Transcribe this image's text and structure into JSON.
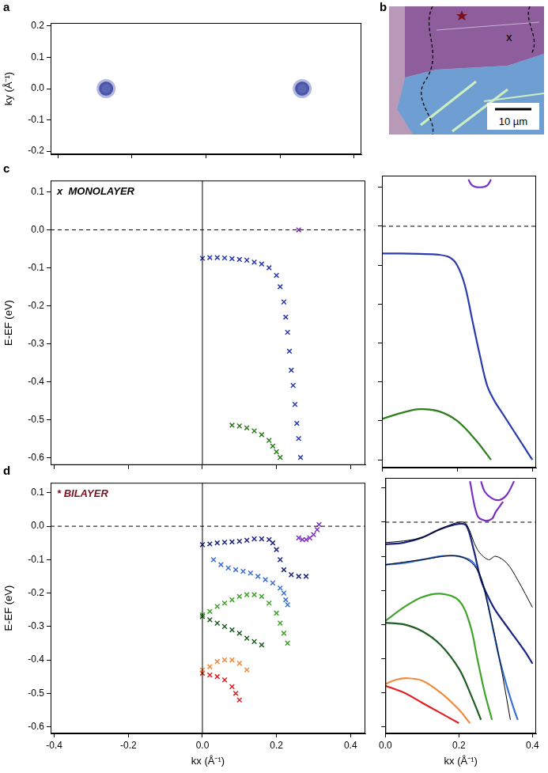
{
  "chart_data": [
    {
      "panel": "a",
      "type": "scatter",
      "xlim": [
        -0.42,
        0.42
      ],
      "ylim": [
        -0.21,
        0.21
      ],
      "xticks": [
        -0.4,
        -0.2,
        {
          "value": 0,
          "label": "0.0"
        },
        0.2,
        0.4
      ],
      "yticks": [
        -0.2,
        -0.1,
        {
          "value": 0,
          "label": "0.0"
        },
        0.1,
        0.2
      ],
      "y_label": "ky (Å⁻¹)",
      "tick_labels": "y",
      "grid": false,
      "series": [
        {
          "type": "scatter",
          "marker": "blob",
          "color": "#25339a",
          "x": [
            -0.27,
            0.26
          ],
          "values": [
            0,
            0
          ]
        }
      ]
    },
    {
      "panel": "c",
      "type": "scatter",
      "xlim": [
        -0.41,
        0.44
      ],
      "ylim": [
        -0.62,
        0.13
      ],
      "xticks": [
        -0.4,
        -0.2,
        {
          "value": 0,
          "label": "0.0"
        },
        0.2,
        0.4
      ],
      "yticks": [
        -0.6,
        -0.5,
        -0.4,
        -0.3,
        -0.2,
        -0.1,
        {
          "value": 0,
          "label": "0.0"
        },
        0.1
      ],
      "y_label": "E-EF (eV)",
      "tick_labels": "y",
      "grid": false,
      "hlines": [
        0
      ],
      "vlines": [
        0
      ],
      "annotation": {
        "text": "x  MONOLAYER",
        "color": "#000000"
      },
      "series": [
        {
          "type": "scatter",
          "marker": "cross",
          "color": "#2a3bb0",
          "x": [
            0.0,
            0.02,
            0.04,
            0.06,
            0.08,
            0.1,
            0.12,
            0.14,
            0.16,
            0.18,
            0.2,
            0.21,
            0.22,
            0.225,
            0.23,
            0.235,
            0.24,
            0.245,
            0.25,
            0.255,
            0.26,
            0.265
          ],
          "values": [
            -0.075,
            -0.073,
            -0.073,
            -0.074,
            -0.076,
            -0.078,
            -0.08,
            -0.085,
            -0.09,
            -0.1,
            -0.12,
            -0.15,
            -0.19,
            -0.23,
            -0.27,
            -0.32,
            -0.37,
            -0.41,
            -0.46,
            -0.51,
            -0.55,
            -0.6
          ]
        },
        {
          "type": "scatter",
          "marker": "cross",
          "color": "#2e7d1e",
          "x": [
            0.08,
            0.1,
            0.12,
            0.14,
            0.16,
            0.18,
            0.19,
            0.2,
            0.21
          ],
          "values": [
            -0.515,
            -0.517,
            -0.522,
            -0.53,
            -0.54,
            -0.555,
            -0.57,
            -0.585,
            -0.6
          ]
        },
        {
          "type": "scatter",
          "marker": "cross",
          "color": "#7b2fbf",
          "x": [
            0.26
          ],
          "values": [
            0.0
          ]
        }
      ]
    },
    {
      "type": "line",
      "xlim": [
        0,
        0.41
      ],
      "ylim": [
        -0.62,
        0.13
      ],
      "xticks": [
        {
          "value": 0,
          "label": "0.0"
        },
        0.2,
        0.4
      ],
      "yticks": [
        -0.6,
        -0.5,
        -0.4,
        -0.3,
        -0.2,
        -0.1,
        {
          "value": 0,
          "label": "0.0"
        },
        0.1
      ],
      "tick_labels": false,
      "grid": false,
      "hlines": [
        0
      ],
      "series": [
        {
          "type": "line",
          "line_style": "solid",
          "color": "#2a3bb0",
          "x": [
            0,
            0.05,
            0.1,
            0.15,
            0.18,
            0.2,
            0.22,
            0.24,
            0.26,
            0.28,
            0.3,
            0.32,
            0.34,
            0.36,
            0.38,
            0.4
          ],
          "values": [
            -0.07,
            -0.07,
            -0.071,
            -0.073,
            -0.08,
            -0.1,
            -0.15,
            -0.24,
            -0.33,
            -0.41,
            -0.45,
            -0.48,
            -0.51,
            -0.54,
            -0.57,
            -0.6
          ]
        },
        {
          "type": "line",
          "line_style": "solid",
          "color": "#2e7d1e",
          "x": [
            0,
            0.05,
            0.1,
            0.15,
            0.2,
            0.25,
            0.29
          ],
          "values": [
            -0.495,
            -0.48,
            -0.47,
            -0.475,
            -0.5,
            -0.55,
            -0.6
          ]
        },
        {
          "type": "line",
          "line_style": "solid",
          "color": "#7b2fbf",
          "x": [
            0.23,
            0.24,
            0.26,
            0.28,
            0.29
          ],
          "values": [
            0.12,
            0.105,
            0.1,
            0.105,
            0.12
          ]
        }
      ]
    },
    {
      "panel": "d",
      "type": "scatter",
      "xlim": [
        -0.41,
        0.44
      ],
      "ylim": [
        -0.62,
        0.13
      ],
      "xticks": [
        -0.4,
        -0.2,
        {
          "value": 0,
          "label": "0.0"
        },
        0.2,
        0.4
      ],
      "yticks": [
        -0.6,
        -0.5,
        -0.4,
        -0.3,
        -0.2,
        -0.1,
        {
          "value": 0,
          "label": "0.0"
        },
        0.1
      ],
      "x_label": "kx (Å⁻¹)",
      "y_label": "E-EF (eV)",
      "tick_labels": true,
      "grid": false,
      "hlines": [
        0
      ],
      "vlines": [
        0
      ],
      "annotation": {
        "text": "* BILAYER",
        "color": "#7a1020"
      },
      "series": [
        {
          "type": "scatter",
          "marker": "cross",
          "color": "#1a237e",
          "x": [
            0.0,
            0.02,
            0.04,
            0.06,
            0.08,
            0.1,
            0.12,
            0.14,
            0.16,
            0.18,
            0.19,
            0.2,
            0.21,
            0.22,
            0.24,
            0.26,
            0.28
          ],
          "values": [
            -0.055,
            -0.053,
            -0.05,
            -0.048,
            -0.047,
            -0.045,
            -0.042,
            -0.038,
            -0.038,
            -0.04,
            -0.05,
            -0.07,
            -0.1,
            -0.13,
            -0.145,
            -0.15,
            -0.15
          ]
        },
        {
          "type": "scatter",
          "marker": "cross",
          "color": "#3a6fd8",
          "x": [
            0.03,
            0.05,
            0.07,
            0.09,
            0.11,
            0.13,
            0.15,
            0.17,
            0.19,
            0.21,
            0.22,
            0.225,
            0.23
          ],
          "values": [
            -0.1,
            -0.115,
            -0.125,
            -0.13,
            -0.135,
            -0.14,
            -0.15,
            -0.16,
            -0.17,
            -0.185,
            -0.2,
            -0.22,
            -0.235
          ]
        },
        {
          "type": "scatter",
          "marker": "cross",
          "color": "#7b2fbf",
          "x": [
            0.26,
            0.27,
            0.28,
            0.29,
            0.3,
            0.31,
            0.315
          ],
          "values": [
            -0.035,
            -0.04,
            -0.04,
            -0.035,
            -0.025,
            -0.01,
            0.005
          ]
        },
        {
          "type": "scatter",
          "marker": "cross",
          "color": "#3fa32a",
          "x": [
            0.0,
            0.02,
            0.04,
            0.06,
            0.08,
            0.1,
            0.12,
            0.14,
            0.16,
            0.18,
            0.2,
            0.21,
            0.22,
            0.23
          ],
          "values": [
            -0.265,
            -0.255,
            -0.24,
            -0.23,
            -0.22,
            -0.21,
            -0.205,
            -0.205,
            -0.21,
            -0.23,
            -0.26,
            -0.29,
            -0.32,
            -0.35
          ]
        },
        {
          "type": "scatter",
          "marker": "cross",
          "color": "#1e5e20",
          "x": [
            0.0,
            0.02,
            0.04,
            0.06,
            0.08,
            0.1,
            0.12,
            0.14,
            0.16
          ],
          "values": [
            -0.27,
            -0.28,
            -0.29,
            -0.3,
            -0.31,
            -0.32,
            -0.335,
            -0.345,
            -0.355
          ]
        },
        {
          "type": "scatter",
          "marker": "cross",
          "color": "#f08a3c",
          "x": [
            0.0,
            0.02,
            0.04,
            0.06,
            0.08,
            0.1,
            0.12
          ],
          "values": [
            -0.43,
            -0.42,
            -0.405,
            -0.4,
            -0.4,
            -0.41,
            -0.43
          ]
        },
        {
          "type": "scatter",
          "marker": "cross",
          "color": "#e02020",
          "x": [
            0.0,
            0.02,
            0.04,
            0.06,
            0.08,
            0.09,
            0.1
          ],
          "values": [
            -0.44,
            -0.445,
            -0.45,
            -0.46,
            -0.48,
            -0.5,
            -0.52
          ]
        }
      ]
    },
    {
      "type": "line",
      "xlim": [
        0,
        0.41
      ],
      "ylim": [
        -0.62,
        0.13
      ],
      "xticks": [
        {
          "value": 0,
          "label": "0.0"
        },
        0.2,
        0.4
      ],
      "yticks": [
        -0.6,
        -0.5,
        -0.4,
        -0.3,
        -0.2,
        -0.1,
        {
          "value": 0,
          "label": "0.0"
        },
        0.1
      ],
      "x_label": "kx (Å⁻¹)",
      "tick_labels": "x",
      "grid": false,
      "hlines": [
        0
      ],
      "series": [
        {
          "type": "line",
          "line_style": "thin",
          "color": "#000000",
          "x": [
            0,
            0.05,
            0.1,
            0.15,
            0.2,
            0.22,
            0.25,
            0.28,
            0.3,
            0.33,
            0.36,
            0.4
          ],
          "values": [
            -0.06,
            -0.055,
            -0.045,
            -0.02,
            0.0,
            -0.005,
            -0.08,
            -0.11,
            -0.1,
            -0.12,
            -0.17,
            -0.25
          ]
        },
        {
          "type": "line",
          "line_style": "thin",
          "color": "#000000",
          "x": [
            0,
            0.1,
            0.2,
            0.25,
            0.28,
            0.31,
            0.34
          ],
          "values": [
            -0.125,
            -0.11,
            -0.1,
            -0.14,
            -0.25,
            -0.4,
            -0.58
          ]
        },
        {
          "type": "line",
          "line_style": "solid",
          "color": "#1a237e",
          "x": [
            0,
            0.05,
            0.1,
            0.15,
            0.2,
            0.22,
            0.24,
            0.26,
            0.28,
            0.3,
            0.34,
            0.38,
            0.4
          ],
          "values": [
            -0.065,
            -0.06,
            -0.045,
            -0.02,
            -0.005,
            -0.01,
            -0.08,
            -0.17,
            -0.22,
            -0.26,
            -0.32,
            -0.38,
            -0.415
          ]
        },
        {
          "type": "line",
          "line_style": "solid",
          "color": "#3a6fd8",
          "x": [
            0,
            0.05,
            0.1,
            0.15,
            0.2,
            0.24,
            0.27,
            0.29,
            0.31,
            0.33,
            0.35,
            0.36
          ],
          "values": [
            -0.125,
            -0.12,
            -0.11,
            -0.1,
            -0.1,
            -0.12,
            -0.2,
            -0.3,
            -0.4,
            -0.48,
            -0.55,
            -0.58
          ]
        },
        {
          "type": "line",
          "line_style": "solid",
          "color": "#3fa32a",
          "x": [
            0,
            0.05,
            0.1,
            0.15,
            0.2,
            0.23,
            0.25,
            0.27,
            0.29
          ],
          "values": [
            -0.29,
            -0.25,
            -0.22,
            -0.21,
            -0.23,
            -0.3,
            -0.4,
            -0.5,
            -0.58
          ]
        },
        {
          "type": "line",
          "line_style": "solid",
          "color": "#1e5e20",
          "x": [
            0,
            0.05,
            0.1,
            0.15,
            0.2,
            0.23,
            0.26
          ],
          "values": [
            -0.295,
            -0.3,
            -0.32,
            -0.36,
            -0.43,
            -0.5,
            -0.58
          ]
        },
        {
          "type": "line",
          "line_style": "solid",
          "color": "#f08a3c",
          "x": [
            0,
            0.03,
            0.06,
            0.1,
            0.15,
            0.2,
            0.23
          ],
          "values": [
            -0.475,
            -0.462,
            -0.458,
            -0.465,
            -0.5,
            -0.55,
            -0.59
          ]
        },
        {
          "type": "line",
          "line_style": "solid",
          "color": "#e02020",
          "x": [
            0,
            0.05,
            0.1,
            0.15,
            0.2
          ],
          "values": [
            -0.48,
            -0.5,
            -0.53,
            -0.56,
            -0.59
          ]
        },
        {
          "type": "line",
          "line_style": "solid",
          "color": "#7b2fbf",
          "x": [
            0.26,
            0.27,
            0.29,
            0.31,
            0.33,
            0.35
          ],
          "values": [
            0.12,
            0.09,
            0.07,
            0.065,
            0.08,
            0.12
          ]
        },
        {
          "type": "line",
          "line_style": "solid",
          "color": "#7b2fbf",
          "x": [
            0.23,
            0.25,
            0.27,
            0.29,
            0.3,
            0.32
          ],
          "values": [
            0.12,
            0.02,
            0.005,
            0.01,
            0.03,
            0.06
          ]
        }
      ]
    }
  ],
  "image": {
    "panel": "b",
    "label": "x",
    "scale_bar": "10 µm"
  }
}
